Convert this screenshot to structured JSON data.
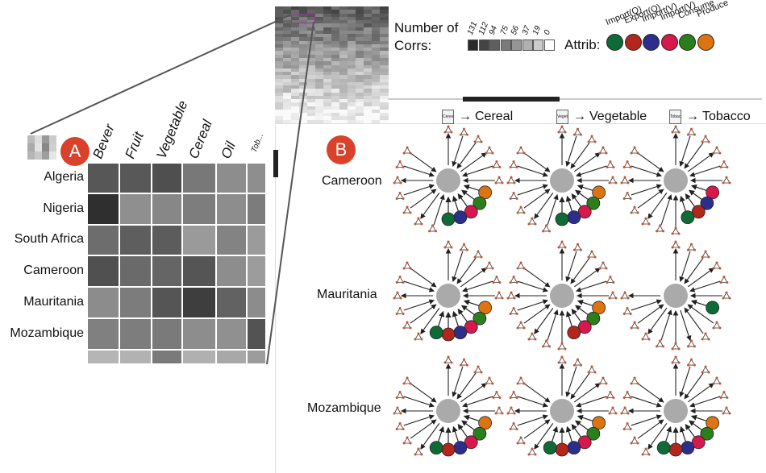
{
  "badges": {
    "a": "A",
    "b": "B"
  },
  "matrix": {
    "columns": [
      "Bever",
      "Fruit",
      "Vegetable",
      "Cereal",
      "Oil",
      "Tob..."
    ],
    "rows": [
      {
        "label": "Algeria",
        "cells": [
          "#575757",
          "#585858",
          "#4f4f4f",
          "#787878",
          "#8d8d8d",
          "#8e8e8e"
        ]
      },
      {
        "label": "Nigeria",
        "cells": [
          "#2f2f2f",
          "#8f8f8f",
          "#878787",
          "#7d7d7d",
          "#8d8d8d",
          "#7c7c7c"
        ]
      },
      {
        "label": "South Africa",
        "cells": [
          "#6d6d6d",
          "#5e5e5e",
          "#5c5c5c",
          "#9a9a9a",
          "#838383",
          "#9b9b9b"
        ]
      },
      {
        "label": "Cameroon",
        "cells": [
          "#505050",
          "#6a6a6a",
          "#656565",
          "#555555",
          "#8d8d8d",
          "#9c9c9c"
        ]
      },
      {
        "label": "Mauritania",
        "cells": [
          "#8c8c8c",
          "#7c7c7c",
          "#555555",
          "#3e3e3e",
          "#626262",
          "#8c8c8c"
        ]
      },
      {
        "label": "Mozambique",
        "cells": [
          "#808080",
          "#7d7d7d",
          "#7a7a7a",
          "#8d8d8d",
          "#909090",
          "#535353"
        ]
      },
      {
        "label": "",
        "cells": [
          "#b5b5b5",
          "#b2b2b2",
          "#7a7a7a",
          "#b0b0b0",
          "#a8a8a8",
          "#9c9c9c"
        ]
      }
    ]
  },
  "corrs_legend": {
    "title_line1": "Number of",
    "title_line2": "Corrs:",
    "steps": [
      {
        "label": "131",
        "color": "#2b2b2b"
      },
      {
        "label": "112",
        "color": "#444444"
      },
      {
        "label": "94",
        "color": "#5f5f5f"
      },
      {
        "label": "75",
        "color": "#7a7a7a"
      },
      {
        "label": "56",
        "color": "#959595"
      },
      {
        "label": "37",
        "color": "#b0b0b0"
      },
      {
        "label": "19",
        "color": "#cbcbcb"
      },
      {
        "label": "0",
        "color": "#ffffff"
      }
    ]
  },
  "attrib_legend": {
    "title": "Attrib:",
    "items": [
      {
        "label": "Import(Q)",
        "color": "#0f6b35"
      },
      {
        "label": "Export(Q)",
        "color": "#b3261c"
      },
      {
        "label": "Import(V)",
        "color": "#2d2e8c"
      },
      {
        "label": "Import(V)",
        "color": "#d6184d"
      },
      {
        "label": "Consume",
        "color": "#2a7f1c"
      },
      {
        "label": "Produce",
        "color": "#dc7412"
      }
    ]
  },
  "glyph_grid": {
    "columns": [
      {
        "label": "Cereal",
        "thumb": "Cereal"
      },
      {
        "label": "Vegetable",
        "thumb": "Veget"
      },
      {
        "label": "Tobacco",
        "thumb": "Tobac"
      }
    ],
    "rows": [
      {
        "label": "Cameroon",
        "glyphs": [
          {
            "spokes": 18,
            "dots": [
              "#dc7412",
              "#2a7f1c",
              "#d6184d",
              "#2d2e8c",
              "#0f6b35"
            ]
          },
          {
            "spokes": 18,
            "dots": [
              "#dc7412",
              "#2a7f1c",
              "#d6184d",
              "#2d2e8c",
              "#0f6b35"
            ]
          },
          {
            "spokes": 18,
            "dots": [
              "#d6184d",
              "#2d2e8c",
              "#b3261c",
              "#0f6b35"
            ]
          }
        ]
      },
      {
        "label": "Mauritania",
        "glyphs": [
          {
            "spokes": 18,
            "dots": [
              "#dc7412",
              "#2a7f1c",
              "#d6184d",
              "#2d2e8c",
              "#b3261c",
              "#0f6b35"
            ]
          },
          {
            "spokes": 18,
            "dots": [
              "#dc7412",
              "#2a7f1c",
              "#d6184d",
              "#b3261c"
            ]
          },
          {
            "spokes": 16,
            "dots": [
              "#0f6b35"
            ]
          }
        ]
      },
      {
        "label": "Mozambique",
        "glyphs": [
          {
            "spokes": 18,
            "dots": [
              "#dc7412",
              "#2a7f1c",
              "#d6184d",
              "#2d2e8c",
              "#b3261c",
              "#0f6b35"
            ]
          },
          {
            "spokes": 18,
            "dots": [
              "#dc7412",
              "#2a7f1c",
              "#d6184d",
              "#2d2e8c",
              "#b3261c",
              "#0f6b35"
            ]
          },
          {
            "spokes": 18,
            "dots": [
              "#dc7412",
              "#2a7f1c",
              "#d6184d",
              "#2d2e8c",
              "#b3261c",
              "#0f6b35"
            ]
          }
        ]
      }
    ]
  }
}
